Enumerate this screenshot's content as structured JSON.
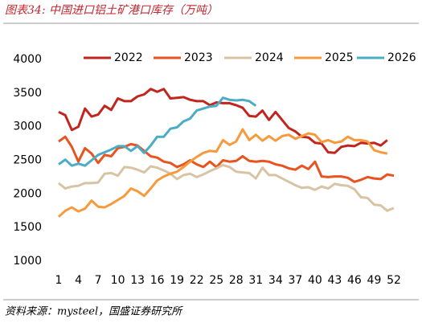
{
  "chart_data": {
    "type": "line",
    "title": "图表34:  中国进口铝土矿港口库存（万吨）",
    "source": "资料来源：mysteel，国盛证券研究所",
    "x": [
      1,
      2,
      3,
      4,
      5,
      6,
      7,
      8,
      9,
      10,
      11,
      12,
      13,
      14,
      15,
      16,
      17,
      18,
      19,
      20,
      21,
      22,
      23,
      24,
      25,
      26,
      27,
      28,
      29,
      30,
      31,
      32,
      33,
      34,
      35,
      36,
      37,
      38,
      39,
      40,
      41,
      42,
      43,
      44,
      45,
      46,
      47,
      48,
      49,
      50,
      51,
      52
    ],
    "xlim": [
      1,
      52
    ],
    "xticks": [
      1,
      4,
      7,
      10,
      13,
      16,
      19,
      22,
      25,
      28,
      31,
      34,
      37,
      40,
      43,
      46,
      49,
      52
    ],
    "ylim": [
      1000,
      4000
    ],
    "yticks": [
      1000,
      1500,
      2000,
      2500,
      3000,
      3500,
      4000
    ],
    "grid": false,
    "series": [
      {
        "name": "2022",
        "color": "#c0261e",
        "values": [
          3220,
          3170,
          2950,
          3000,
          3270,
          3150,
          3180,
          3310,
          3250,
          3420,
          3380,
          3380,
          3450,
          3480,
          3560,
          3520,
          3560,
          3420,
          3430,
          3440,
          3400,
          3380,
          3380,
          3320,
          3360,
          3350,
          3350,
          3320,
          3280,
          3160,
          3150,
          3240,
          3100,
          3220,
          3100,
          2980,
          2930,
          2850,
          2840,
          2760,
          2750,
          2620,
          2610,
          2700,
          2720,
          2710,
          2760,
          2750,
          2760,
          2720,
          2800,
          null
        ]
      },
      {
        "name": "2023",
        "color": "#e8531f",
        "values": [
          2780,
          2850,
          2700,
          2480,
          2680,
          2600,
          2460,
          2580,
          2560,
          2680,
          2700,
          2740,
          2720,
          2640,
          2560,
          2540,
          2480,
          2460,
          2400,
          2440,
          2500,
          2440,
          2400,
          2480,
          2400,
          2500,
          2480,
          2490,
          2560,
          2490,
          2480,
          2490,
          2480,
          2440,
          2420,
          2380,
          2360,
          2420,
          2370,
          2480,
          2260,
          2250,
          2260,
          2260,
          2240,
          2180,
          2210,
          2250,
          2230,
          2220,
          2290,
          2270
        ]
      },
      {
        "name": "2024",
        "color": "#d8c3a5",
        "values": [
          2160,
          2080,
          2110,
          2120,
          2160,
          2160,
          2170,
          2300,
          2310,
          2270,
          2400,
          2390,
          2360,
          2320,
          2410,
          2390,
          2350,
          2300,
          2220,
          2280,
          2300,
          2250,
          2290,
          2340,
          2380,
          2430,
          2400,
          2330,
          2320,
          2310,
          2230,
          2390,
          2280,
          2280,
          2230,
          2180,
          2130,
          2090,
          2100,
          2060,
          2110,
          2080,
          2150,
          2130,
          2120,
          2070,
          1950,
          1940,
          1840,
          1830,
          1750,
          1790
        ]
      },
      {
        "name": "2025",
        "color": "#f79a3c",
        "values": [
          1660,
          1750,
          1800,
          1740,
          1780,
          1900,
          1810,
          1800,
          1850,
          1910,
          1970,
          2080,
          2040,
          1970,
          2080,
          2200,
          2260,
          2300,
          2330,
          2400,
          2480,
          2550,
          2610,
          2640,
          2630,
          2800,
          2730,
          2780,
          2960,
          2800,
          2880,
          2790,
          2860,
          2790,
          2860,
          2880,
          2820,
          2860,
          2900,
          2880,
          2770,
          2800,
          2760,
          2780,
          2850,
          2800,
          2800,
          2780,
          2650,
          2620,
          2600,
          null
        ]
      },
      {
        "name": "2026",
        "color": "#4bacc6",
        "values": [
          2440,
          2510,
          2420,
          2450,
          2420,
          2500,
          2580,
          2620,
          2660,
          2710,
          2710,
          2640,
          2710,
          2610,
          2720,
          2850,
          2850,
          2970,
          2990,
          3080,
          3120,
          3240,
          3270,
          3300,
          3310,
          3430,
          3400,
          3390,
          3400,
          3380,
          3310,
          null,
          null,
          null,
          null,
          null,
          null,
          null,
          null,
          null,
          null,
          null,
          null,
          null,
          null,
          null,
          null,
          null,
          null,
          null,
          null,
          null
        ]
      }
    ]
  }
}
